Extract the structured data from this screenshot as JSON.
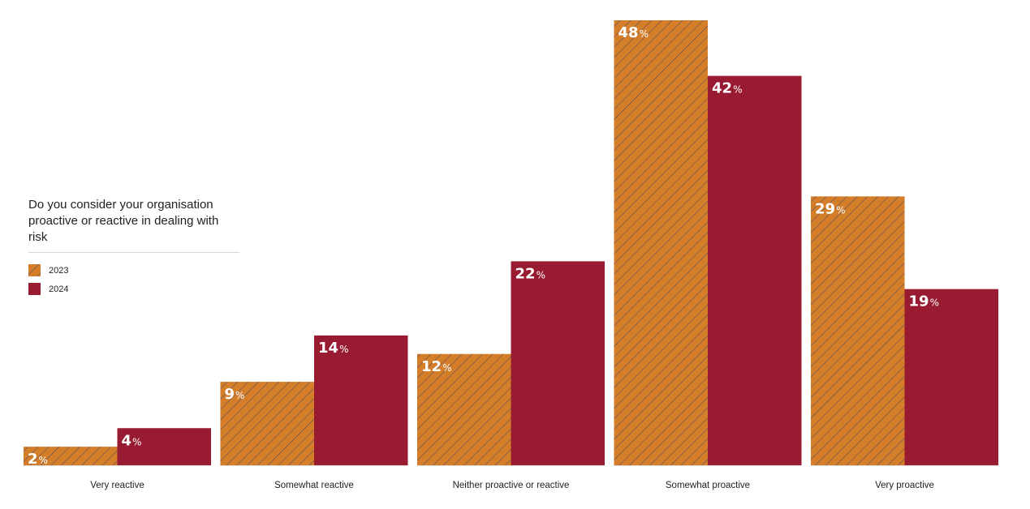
{
  "chart_data": {
    "type": "bar",
    "title": "Do you consider your organisation proactive or reactive in dealing with risk",
    "categories": [
      "Very reactive",
      "Somewhat reactive",
      "Neither proactive or reactive",
      "Somewhat proactive",
      "Very proactive"
    ],
    "series": [
      {
        "name": "2023",
        "values": [
          2,
          9,
          12,
          48,
          29
        ],
        "color": "#d47e2a",
        "pattern": "hatched"
      },
      {
        "name": "2024",
        "values": [
          4,
          14,
          22,
          42,
          19
        ],
        "color": "#981b31",
        "pattern": "solid"
      }
    ],
    "value_suffix": "%",
    "ylim": [
      0,
      48
    ],
    "grid": false,
    "legend_placement": "left-middle",
    "xlabel": "",
    "ylabel": ""
  },
  "legend": {
    "title": "Do you consider your organisation proactive or reactive in dealing with risk",
    "items": [
      {
        "label": "2023",
        "color": "#d47e2a",
        "pattern": "hatched"
      },
      {
        "label": "2024",
        "color": "#981b31",
        "pattern": "solid"
      }
    ]
  },
  "colors": {
    "hatch_line": "#5a4a5c",
    "baseline": "#d8d8d8"
  }
}
